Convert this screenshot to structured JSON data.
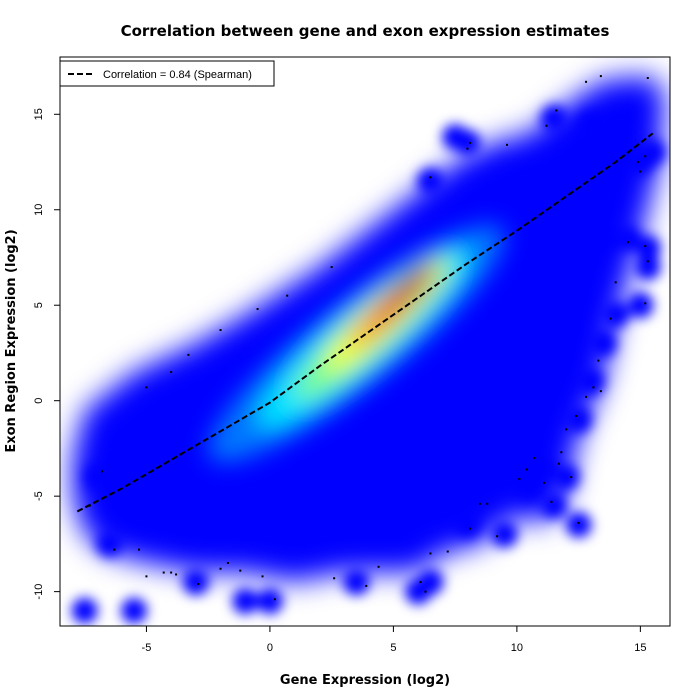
{
  "chart_data": {
    "type": "scatter",
    "title": "Correlation between gene and exon expression estimates",
    "xlabel": "Gene Expression (log2)",
    "ylabel": "Exon Region Expression (log2)",
    "xlim": [
      -8.5,
      16.2
    ],
    "ylim": [
      -11.8,
      18.0
    ],
    "x_ticks": [
      -5,
      0,
      5,
      10,
      15
    ],
    "y_ticks": [
      -10,
      -5,
      0,
      5,
      10,
      15
    ],
    "density_colors": [
      "#0000ff",
      "#0077ff",
      "#00e5ff",
      "#7fff7f",
      "#ffff00",
      "#ff7f00",
      "#e00000",
      "#8b0000"
    ],
    "density_cores": [
      {
        "x": 3.5,
        "y": 3.0,
        "sx": 7.5,
        "sy": 2.2,
        "angle_deg": 38,
        "level": 0
      },
      {
        "x": 3.8,
        "y": 3.3,
        "sx": 5.5,
        "sy": 1.6,
        "angle_deg": 40,
        "level": 1
      },
      {
        "x": 4.2,
        "y": 3.8,
        "sx": 4.2,
        "sy": 1.1,
        "angle_deg": 42,
        "level": 2
      },
      {
        "x": 4.6,
        "y": 4.4,
        "sx": 3.2,
        "sy": 0.8,
        "angle_deg": 43,
        "level": 3
      },
      {
        "x": 5.0,
        "y": 5.0,
        "sx": 2.4,
        "sy": 0.6,
        "angle_deg": 44,
        "level": 4
      },
      {
        "x": 5.4,
        "y": 5.6,
        "sx": 1.7,
        "sy": 0.45,
        "angle_deg": 45,
        "level": 5
      },
      {
        "x": 5.7,
        "y": 6.1,
        "sx": 1.0,
        "sy": 0.3,
        "angle_deg": 45,
        "level": 6
      }
    ],
    "outer_region": [
      [
        -8.0,
        -3.0
      ],
      [
        -7.5,
        -0.5
      ],
      [
        -5.5,
        1.5
      ],
      [
        -3.0,
        3.0
      ],
      [
        -1.0,
        4.5
      ],
      [
        2.0,
        7.0
      ],
      [
        5.5,
        10.5
      ],
      [
        7.5,
        12.5
      ],
      [
        9.0,
        13.5
      ],
      [
        10.5,
        14.0
      ],
      [
        12.0,
        15.5
      ],
      [
        13.5,
        16.8
      ],
      [
        15.5,
        17.0
      ],
      [
        16.0,
        16.0
      ],
      [
        15.8,
        12.5
      ],
      [
        15.0,
        8.5
      ],
      [
        14.0,
        4.0
      ],
      [
        13.5,
        1.0
      ],
      [
        12.5,
        -2.0
      ],
      [
        12.0,
        -5.0
      ],
      [
        11.0,
        -6.5
      ],
      [
        10.0,
        -6.0
      ],
      [
        8.5,
        -7.5
      ],
      [
        7.0,
        -8.0
      ],
      [
        6.0,
        -9.0
      ],
      [
        4.5,
        -9.0
      ],
      [
        3.0,
        -9.0
      ],
      [
        1.0,
        -9.5
      ],
      [
        -1.0,
        -9.0
      ],
      [
        -3.0,
        -9.0
      ],
      [
        -5.0,
        -8.5
      ],
      [
        -6.5,
        -8.0
      ],
      [
        -7.5,
        -7.0
      ],
      [
        -8.0,
        -5.0
      ]
    ],
    "outlier_blobs": [
      [
        -7.5,
        -11.0
      ],
      [
        -5.5,
        -11.0
      ],
      [
        -3.0,
        -9.5
      ],
      [
        -1.0,
        -10.5
      ],
      [
        0.0,
        -10.5
      ],
      [
        3.5,
        -9.5
      ],
      [
        6.0,
        -10.0
      ],
      [
        6.5,
        -9.5
      ],
      [
        8.0,
        -6.5
      ],
      [
        9.5,
        -7.0
      ],
      [
        10.5,
        -4.5
      ],
      [
        11.0,
        -3.5
      ],
      [
        11.5,
        -5.5
      ],
      [
        12.0,
        -4.0
      ],
      [
        12.5,
        -6.5
      ],
      [
        12.5,
        -1.0
      ],
      [
        13.0,
        1.0
      ],
      [
        13.5,
        3.0
      ],
      [
        14.0,
        4.5
      ],
      [
        15.0,
        5.0
      ],
      [
        15.3,
        7.0
      ],
      [
        15.3,
        8.0
      ],
      [
        14.5,
        8.5
      ],
      [
        13.5,
        8.5
      ],
      [
        15.5,
        13.0
      ],
      [
        15.0,
        12.5
      ],
      [
        13.0,
        14.5
      ],
      [
        11.5,
        14.8
      ],
      [
        8.0,
        13.5
      ],
      [
        7.5,
        13.8
      ],
      [
        6.5,
        11.5
      ],
      [
        -7.0,
        -4.0
      ],
      [
        -6.5,
        -7.5
      ]
    ],
    "outlier_points": [
      [
        -7.3,
        -5.5
      ],
      [
        -6.8,
        -3.7
      ],
      [
        -6.3,
        -7.8
      ],
      [
        -5.3,
        -7.8
      ],
      [
        -5.0,
        -9.2
      ],
      [
        -4.3,
        -9.0
      ],
      [
        -4.0,
        -9.0
      ],
      [
        -3.8,
        -9.1
      ],
      [
        -2.9,
        -9.6
      ],
      [
        -2.0,
        -8.8
      ],
      [
        -1.7,
        -8.5
      ],
      [
        -1.2,
        -8.9
      ],
      [
        -0.3,
        -9.2
      ],
      [
        0.2,
        -10.4
      ],
      [
        2.6,
        -9.3
      ],
      [
        3.9,
        -9.7
      ],
      [
        4.4,
        -8.7
      ],
      [
        6.1,
        -9.5
      ],
      [
        6.3,
        -10.0
      ],
      [
        6.5,
        -8.0
      ],
      [
        7.2,
        -7.9
      ],
      [
        8.1,
        -6.7
      ],
      [
        8.5,
        -5.4
      ],
      [
        8.8,
        -5.4
      ],
      [
        9.2,
        -7.1
      ],
      [
        10.1,
        -4.1
      ],
      [
        10.4,
        -3.6
      ],
      [
        10.7,
        -3.0
      ],
      [
        11.1,
        -4.3
      ],
      [
        11.4,
        -5.3
      ],
      [
        11.7,
        -3.3
      ],
      [
        11.8,
        -2.7
      ],
      [
        12.0,
        -1.5
      ],
      [
        12.2,
        -4.0
      ],
      [
        12.5,
        -6.4
      ],
      [
        12.4,
        -0.8
      ],
      [
        12.8,
        0.2
      ],
      [
        13.1,
        0.7
      ],
      [
        13.3,
        2.1
      ],
      [
        13.4,
        0.5
      ],
      [
        13.8,
        4.3
      ],
      [
        14.0,
        6.2
      ],
      [
        14.5,
        8.3
      ],
      [
        15.2,
        5.1
      ],
      [
        15.3,
        7.3
      ],
      [
        15.2,
        8.1
      ],
      [
        15.2,
        12.8
      ],
      [
        15.0,
        12.0
      ],
      [
        14.9,
        12.5
      ],
      [
        15.3,
        16.9
      ],
      [
        13.4,
        17.0
      ],
      [
        12.8,
        16.7
      ],
      [
        11.6,
        15.2
      ],
      [
        11.2,
        14.4
      ],
      [
        9.6,
        13.4
      ],
      [
        8.1,
        13.5
      ],
      [
        8.0,
        13.2
      ],
      [
        6.5,
        11.7
      ],
      [
        2.5,
        7.0
      ],
      [
        0.7,
        5.5
      ],
      [
        -0.5,
        4.8
      ],
      [
        -2.0,
        3.7
      ],
      [
        -3.3,
        2.4
      ],
      [
        -4.0,
        1.5
      ],
      [
        -5.0,
        0.7
      ]
    ],
    "trend_line": {
      "x": [
        -7.8,
        -6.0,
        -4.0,
        -2.0,
        0.0,
        2.0,
        4.0,
        6.0,
        8.0,
        10.0,
        12.0,
        14.0,
        15.5
      ],
      "y": [
        -5.8,
        -4.6,
        -3.1,
        -1.6,
        -0.1,
        1.8,
        3.6,
        5.4,
        7.2,
        8.9,
        10.7,
        12.5,
        14.0
      ],
      "style": "dashed",
      "color": "#000000"
    },
    "legend": {
      "position": "top-left",
      "entries": [
        {
          "label": "Correlation = 0.84 (Spearman)",
          "style": "dashed"
        }
      ]
    },
    "grid": false
  }
}
